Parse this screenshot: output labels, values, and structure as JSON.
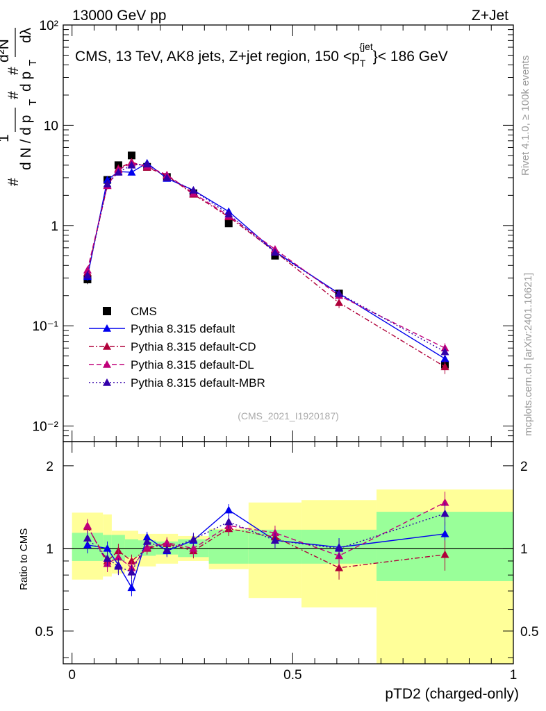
{
  "header": {
    "left": "13000 GeV pp",
    "right": "Z+Jet"
  },
  "side_text": {
    "top": "Rivet 4.1.0, ≥ 100k events",
    "bottom": "mcplots.cern.ch [arXiv:2401.10621]"
  },
  "chart_data": [
    {
      "type": "scatter",
      "panel": "main",
      "title": "CMS, 13 TeV, AK8 jets, Z+jet region, 150 <p_T^{jet}< 186 GeV",
      "title_parts": {
        "pre": "CMS, 13 TeV, AK8 jets, Z+jet region, 150 <p",
        "sub": "T",
        "sup": "{jet",
        "post": "}< 186 GeV"
      },
      "ylabel": "1/(dN/dp_T) d2N/(dp_T dlambda)",
      "ylabel_parts": {
        "hash": "#",
        "one": "1",
        "dN": "d N / d p",
        "T": "T",
        "d2N": "d²N",
        "dpt": "d p",
        "dl": "dλ"
      },
      "yscale": "log",
      "ylim": [
        0.007,
        100
      ],
      "xlim": [
        -0.02,
        1.0
      ],
      "ytick_labels": [
        "10⁻²",
        "10⁻¹",
        "1",
        "10",
        "10²"
      ],
      "watermark": "(CMS_2021_I1920187)",
      "legend_position": "bottom-left",
      "legend": [
        "CMS",
        "Pythia 8.315 default",
        "Pythia 8.315 default-CD",
        "Pythia 8.315 default-DL",
        "Pythia 8.315 default-MBR"
      ],
      "x": [
        0.035,
        0.08,
        0.105,
        0.135,
        0.17,
        0.215,
        0.275,
        0.355,
        0.46,
        0.605,
        0.845
      ],
      "series": [
        {
          "name": "CMS",
          "color": "#000000",
          "marker": "square",
          "values": [
            0.29,
            2.85,
            4.0,
            5.0,
            3.85,
            3.05,
            2.1,
            1.05,
            0.5,
            0.21,
            0.041
          ],
          "err": [
            0.03,
            0.15,
            0.2,
            0.25,
            0.15,
            0.12,
            0.08,
            0.05,
            0.025,
            0.012,
            0.004
          ]
        },
        {
          "name": "Pythia 8.315 default",
          "color": "#0000ee",
          "style": "solid",
          "values": [
            0.31,
            2.85,
            3.45,
            3.4,
            4.2,
            2.95,
            2.25,
            1.38,
            0.55,
            0.21,
            0.047
          ],
          "err": [
            0.03,
            0.2,
            0.2,
            0.2,
            0.2,
            0.15,
            0.1,
            0.08,
            0.04,
            0.02,
            0.006
          ]
        },
        {
          "name": "Pythia 8.315 default-CD",
          "color": "#b0003a",
          "style": "dashdot",
          "values": [
            0.34,
            2.5,
            3.7,
            4.3,
            3.8,
            3.15,
            2.05,
            1.22,
            0.55,
            0.17,
            0.039
          ],
          "err": [
            0.03,
            0.2,
            0.2,
            0.2,
            0.2,
            0.15,
            0.1,
            0.07,
            0.04,
            0.02,
            0.006
          ]
        },
        {
          "name": "Pythia 8.315 default-DL",
          "color": "#c0007a",
          "style": "dashed",
          "values": [
            0.36,
            2.5,
            3.6,
            4.2,
            3.9,
            3.2,
            2.1,
            1.25,
            0.58,
            0.2,
            0.06
          ],
          "err": [
            0.03,
            0.2,
            0.2,
            0.2,
            0.2,
            0.15,
            0.1,
            0.07,
            0.04,
            0.02,
            0.007
          ]
        },
        {
          "name": "Pythia 8.315 default-MBR",
          "color": "#3300aa",
          "style": "dotted",
          "values": [
            0.32,
            2.6,
            3.4,
            4.0,
            4.1,
            3.0,
            2.25,
            1.3,
            0.54,
            0.21,
            0.055
          ],
          "err": [
            0.03,
            0.2,
            0.2,
            0.2,
            0.2,
            0.15,
            0.1,
            0.07,
            0.04,
            0.02,
            0.007
          ]
        }
      ]
    },
    {
      "type": "scatter",
      "panel": "ratio",
      "ylabel": "Ratio to CMS",
      "xlabel": "pTD2 (charged-only)",
      "xlim": [
        -0.02,
        1.0
      ],
      "ylim": [
        0.38,
        2.45
      ],
      "yticks": [
        0.5,
        1,
        2
      ],
      "ytick_labels": [
        "0.5",
        "1",
        "2"
      ],
      "xticks": [
        0,
        0.5,
        1
      ],
      "xtick_labels": [
        "0",
        "0.5",
        "1"
      ],
      "bins": [
        [
          0.0,
          0.07
        ],
        [
          0.07,
          0.09
        ],
        [
          0.09,
          0.12
        ],
        [
          0.12,
          0.15
        ],
        [
          0.15,
          0.19
        ],
        [
          0.19,
          0.24
        ],
        [
          0.24,
          0.31
        ],
        [
          0.31,
          0.4
        ],
        [
          0.4,
          0.52
        ],
        [
          0.52,
          0.69
        ],
        [
          0.69,
          1.0
        ]
      ],
      "band_inner": [
        [
          0.9,
          1.14
        ],
        [
          0.91,
          1.12
        ],
        [
          0.9,
          1.12
        ],
        [
          0.93,
          1.08
        ],
        [
          0.94,
          1.07
        ],
        [
          0.95,
          1.06
        ],
        [
          0.93,
          1.08
        ],
        [
          0.88,
          1.17
        ],
        [
          0.88,
          1.17
        ],
        [
          0.88,
          1.17
        ],
        [
          0.76,
          1.36
        ]
      ],
      "band_outer": [
        [
          0.77,
          1.35
        ],
        [
          0.79,
          1.33
        ],
        [
          0.81,
          1.16
        ],
        [
          0.83,
          1.16
        ],
        [
          0.86,
          1.13
        ],
        [
          0.88,
          1.13
        ],
        [
          0.9,
          1.11
        ],
        [
          0.84,
          1.18
        ],
        [
          0.66,
          1.47
        ],
        [
          0.61,
          1.5
        ],
        [
          0.38,
          1.64
        ]
      ],
      "series": [
        {
          "name": "Pythia 8.315 default",
          "color": "#0000ee",
          "style": "solid",
          "values": [
            1.03,
            1.0,
            0.87,
            0.72,
            1.1,
            0.98,
            1.07,
            1.38,
            1.07,
            1.01,
            1.13
          ],
          "err": [
            0.07,
            0.06,
            0.06,
            0.05,
            0.05,
            0.05,
            0.06,
            0.07,
            0.07,
            0.08,
            0.12
          ]
        },
        {
          "name": "Pythia 8.315 default-CD",
          "color": "#b0003a",
          "style": "dashdot",
          "values": [
            1.2,
            0.9,
            0.98,
            0.9,
            1.0,
            1.04,
            0.98,
            1.18,
            1.1,
            0.85,
            0.95
          ],
          "err": [
            0.07,
            0.06,
            0.06,
            0.05,
            0.05,
            0.05,
            0.06,
            0.07,
            0.07,
            0.08,
            0.12
          ]
        },
        {
          "name": "Pythia 8.315 default-DL",
          "color": "#c0007a",
          "style": "dashed",
          "values": [
            1.21,
            0.88,
            0.93,
            0.85,
            1.01,
            1.05,
            1.0,
            1.21,
            1.14,
            0.94,
            1.47
          ],
          "err": [
            0.07,
            0.06,
            0.06,
            0.05,
            0.05,
            0.05,
            0.06,
            0.07,
            0.07,
            0.08,
            0.14
          ]
        },
        {
          "name": "Pythia 8.315 default-MBR",
          "color": "#3300aa",
          "style": "dotted",
          "values": [
            1.09,
            0.92,
            0.86,
            0.82,
            1.06,
            0.99,
            1.08,
            1.25,
            1.07,
            1.0,
            1.34
          ],
          "err": [
            0.07,
            0.06,
            0.06,
            0.05,
            0.05,
            0.05,
            0.06,
            0.07,
            0.07,
            0.08,
            0.13
          ]
        }
      ]
    }
  ]
}
